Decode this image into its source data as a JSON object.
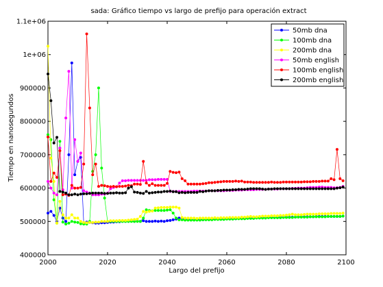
{
  "chart_data": {
    "type": "line",
    "title": "sada: Gráfico tiempo vs largo de prefijo para operación extract",
    "xlabel": "Largo del prefijo",
    "ylabel": "Tiempo en nanosegundos",
    "xlim": [
      2000,
      2100
    ],
    "ylim": [
      400000,
      1100000
    ],
    "xticks": [
      2000,
      2020,
      2040,
      2060,
      2080,
      2100
    ],
    "yticks": [
      400000,
      500000,
      600000,
      700000,
      800000,
      900000,
      1000000,
      1100000
    ],
    "xtick_labels": [
      "2000",
      "2020",
      "2040",
      "2060",
      "2080",
      "2100"
    ],
    "ytick_labels": [
      "400000",
      "500000",
      "600000",
      "700000",
      "800000",
      "900000",
      "1e+06",
      "1.1e+06"
    ],
    "legend_position": "top-right",
    "grid": false,
    "x": [
      2000,
      2001,
      2002,
      2003,
      2004,
      2005,
      2006,
      2007,
      2008,
      2009,
      2010,
      2011,
      2012,
      2013,
      2014,
      2015,
      2016,
      2017,
      2018,
      2019,
      2020,
      2021,
      2022,
      2023,
      2024,
      2025,
      2026,
      2027,
      2028,
      2029,
      2030,
      2031,
      2032,
      2033,
      2034,
      2035,
      2036,
      2037,
      2038,
      2039,
      2040,
      2041,
      2042,
      2043,
      2044,
      2045,
      2046,
      2047,
      2048,
      2049,
      2050,
      2051,
      2052,
      2053,
      2054,
      2055,
      2056,
      2057,
      2058,
      2059,
      2060,
      2061,
      2062,
      2063,
      2064,
      2065,
      2066,
      2067,
      2068,
      2069,
      2070,
      2071,
      2072,
      2073,
      2074,
      2075,
      2076,
      2077,
      2078,
      2079,
      2080,
      2081,
      2082,
      2083,
      2084,
      2085,
      2086,
      2087,
      2088,
      2089,
      2090,
      2091,
      2092,
      2093,
      2094,
      2095,
      2096,
      2097,
      2098,
      2099
    ],
    "series": [
      {
        "name": "50mb dna",
        "color": "#0000ff",
        "values": [
          525000,
          530000,
          518000,
          500000,
          540000,
          510000,
          500000,
          700000,
          975000,
          640000,
          680000,
          692000,
          495000,
          498000,
          497000,
          496000,
          495000,
          495000,
          496000,
          496000,
          497000,
          498000,
          498000,
          499000,
          499000,
          500000,
          500000,
          500000,
          501000,
          500000,
          501000,
          500000,
          502000,
          500000,
          500000,
          500000,
          501000,
          500000,
          501000,
          500000,
          502000,
          503000,
          505000,
          507000,
          510000,
          508000,
          506000,
          506000,
          505000,
          505000,
          505000,
          506000,
          505000,
          506000,
          506000,
          506000,
          507000,
          507000,
          507000,
          507000,
          508000,
          508000,
          508000,
          508000,
          509000,
          509000,
          510000,
          510000,
          510000,
          510000,
          511000,
          511000,
          511000,
          511000,
          512000,
          512000,
          512000,
          512000,
          513000,
          513000,
          513000,
          513000,
          513000,
          513000,
          514000,
          514000,
          514000,
          514000,
          514000,
          514000,
          515000,
          515000,
          515000,
          515000,
          515000,
          515000,
          515000,
          515000,
          515000,
          516000
        ]
      },
      {
        "name": "100mb dna",
        "color": "#00ff00",
        "values": [
          760000,
          745000,
          565000,
          495000,
          740000,
          498000,
          492000,
          495000,
          500000,
          498000,
          497000,
          493000,
          492000,
          492000,
          500000,
          650000,
          700000,
          900000,
          660000,
          570000,
          500000,
          500000,
          500000,
          500000,
          500000,
          500000,
          500000,
          500000,
          500000,
          500000,
          500000,
          500000,
          510000,
          535000,
          533000,
          532000,
          533000,
          533000,
          533000,
          533000,
          534000,
          535000,
          525000,
          510000,
          505000,
          505000,
          504000,
          504000,
          504000,
          504000,
          504000,
          504000,
          505000,
          505000,
          505000,
          505000,
          506000,
          506000,
          506000,
          506000,
          507000,
          507000,
          507000,
          508000,
          508000,
          508000,
          508000,
          509000,
          509000,
          509000,
          510000,
          510000,
          510000,
          510000,
          511000,
          511000,
          511000,
          511000,
          511000,
          512000,
          512000,
          512000,
          512000,
          513000,
          513000,
          513000,
          513000,
          513000,
          514000,
          514000,
          514000,
          514000,
          514000,
          514000,
          515000,
          515000,
          515000,
          515000,
          515000,
          516000
        ]
      },
      {
        "name": "200mb dna",
        "color": "#ffff00",
        "values": [
          1025000,
          690000,
          620000,
          495000,
          560000,
          520000,
          510000,
          510000,
          520000,
          510000,
          510000,
          500000,
          497000,
          496000,
          497000,
          497000,
          498000,
          498000,
          500000,
          500000,
          500000,
          502000,
          502000,
          502000,
          503000,
          503000,
          503000,
          504000,
          505000,
          506000,
          507000,
          515000,
          530000,
          528000,
          530000,
          531000,
          540000,
          541000,
          542000,
          542000,
          542000,
          543000,
          543000,
          543000,
          540000,
          512000,
          510000,
          510000,
          510000,
          510000,
          509000,
          510000,
          510000,
          510000,
          510000,
          510000,
          511000,
          510000,
          511000,
          511000,
          511000,
          512000,
          512000,
          512000,
          512000,
          513000,
          513000,
          514000,
          515000,
          514000,
          514000,
          515000,
          516000,
          516000,
          516000,
          517000,
          517000,
          517000,
          518000,
          518000,
          519000,
          520000,
          522000,
          520000,
          520000,
          520000,
          521000,
          522000,
          522000,
          522000,
          522000,
          523000,
          523000,
          523000,
          523000,
          524000,
          524000,
          524000,
          524000,
          525000
        ]
      },
      {
        "name": "50mb english",
        "color": "#ff00ff",
        "values": [
          620000,
          600000,
          585000,
          580000,
          720000,
          595000,
          810000,
          950000,
          600000,
          745000,
          680000,
          705000,
          592000,
          588000,
          585000,
          580000,
          580000,
          580000,
          582000,
          582000,
          585000,
          598000,
          602000,
          604000,
          615000,
          622000,
          622000,
          623000,
          623000,
          623000,
          623000,
          623000,
          623000,
          623000,
          625000,
          625000,
          625000,
          626000,
          626000,
          626000,
          626000,
          590000,
          590000,
          590000,
          590000,
          590000,
          590000,
          590000,
          590000,
          591000,
          591000,
          591000,
          591000,
          591000,
          592000,
          592000,
          592000,
          592000,
          592000,
          592000,
          593000,
          593000,
          593000,
          594000,
          594000,
          594000,
          595000,
          595000,
          595000,
          595000,
          596000,
          596000,
          596000,
          596000,
          597000,
          597000,
          597000,
          597000,
          598000,
          598000,
          598000,
          598000,
          599000,
          599000,
          600000,
          600000,
          600000,
          601000,
          602000,
          602000,
          602000,
          603000,
          603000,
          602000,
          602000,
          602000,
          601000,
          601000,
          602000,
          605000
        ]
      },
      {
        "name": "100mb english",
        "color": "#ff0000",
        "values": [
          753000,
          620000,
          645000,
          632000,
          712000,
          580000,
          582000,
          578000,
          608000,
          600000,
          600000,
          602000,
          672000,
          1062000,
          840000,
          640000,
          672000,
          605000,
          608000,
          607000,
          605000,
          604000,
          605000,
          604000,
          605000,
          605000,
          606000,
          608000,
          607000,
          612000,
          612000,
          611000,
          680000,
          615000,
          608000,
          613000,
          608000,
          608000,
          608000,
          608000,
          614000,
          650000,
          647000,
          646000,
          648000,
          628000,
          622000,
          612000,
          612000,
          612000,
          612000,
          612000,
          613000,
          614000,
          616000,
          616000,
          617000,
          618000,
          619000,
          620000,
          620000,
          620000,
          620000,
          621000,
          620000,
          621000,
          618000,
          618000,
          618000,
          617000,
          617000,
          617000,
          617000,
          617000,
          617000,
          618000,
          617000,
          617000,
          617000,
          618000,
          618000,
          618000,
          618000,
          618000,
          618000,
          618000,
          619000,
          619000,
          619000,
          620000,
          620000,
          620000,
          621000,
          621000,
          621000,
          628000,
          625000,
          716000,
          628000,
          622000
        ]
      },
      {
        "name": "200mb english",
        "color": "#000000",
        "values": [
          942000,
          862000,
          735000,
          752000,
          590000,
          588000,
          585000,
          580000,
          580000,
          582000,
          580000,
          582000,
          583000,
          583000,
          584000,
          585000,
          585000,
          585000,
          585000,
          584000,
          584000,
          585000,
          585000,
          586000,
          585000,
          585000,
          586000,
          600000,
          604000,
          588000,
          587000,
          585000,
          584000,
          590000,
          585000,
          586000,
          587000,
          588000,
          588000,
          590000,
          590000,
          591000,
          589000,
          589000,
          586000,
          587000,
          586000,
          587000,
          587000,
          587000,
          587000,
          590000,
          589000,
          591000,
          592000,
          592000,
          592000,
          593000,
          593000,
          594000,
          594000,
          594000,
          595000,
          595000,
          596000,
          596000,
          596000,
          597000,
          598000,
          598000,
          598000,
          598000,
          597000,
          596000,
          597000,
          597000,
          598000,
          598000,
          598000,
          598000,
          598000,
          598000,
          598000,
          598000,
          598000,
          598000,
          598000,
          598000,
          598000,
          598000,
          598000,
          598000,
          598000,
          598000,
          598000,
          598000,
          598000,
          600000,
          601000,
          603000
        ]
      }
    ]
  }
}
